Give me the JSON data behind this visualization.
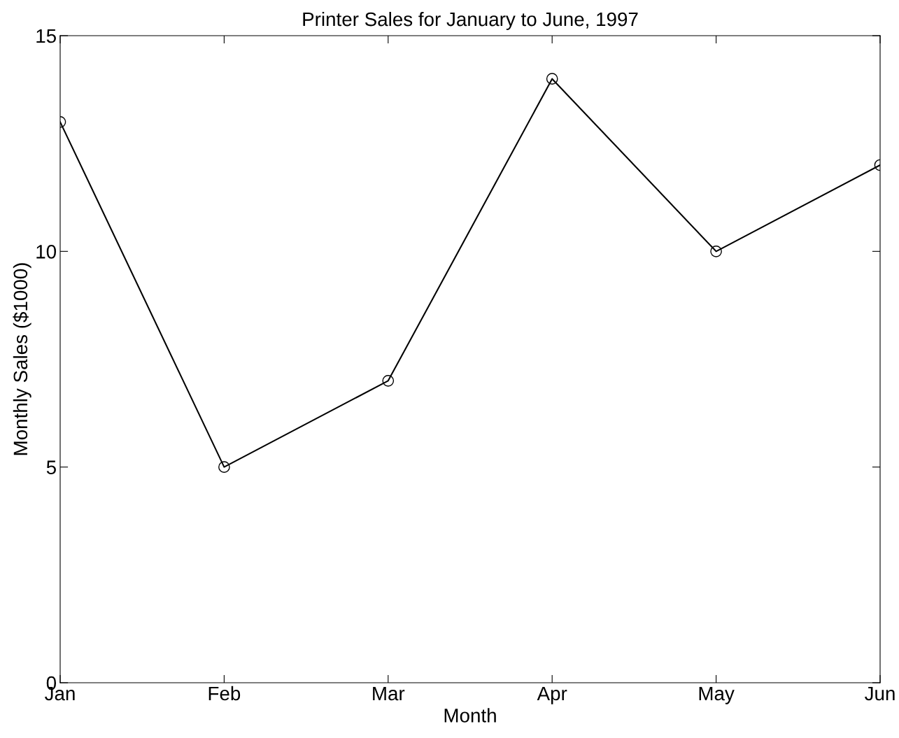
{
  "chart_data": {
    "type": "line",
    "title": "Printer Sales for January to June, 1997",
    "xlabel": "Month",
    "ylabel": "Monthly Sales ($1000)",
    "categories": [
      "Jan",
      "Feb",
      "Mar",
      "Apr",
      "May",
      "Jun"
    ],
    "series": [
      {
        "color": "#000000",
        "values": [
          13,
          5,
          7,
          14,
          10,
          12
        ]
      }
    ],
    "ylim": [
      0,
      15
    ],
    "yticks": [
      0,
      5,
      10,
      15
    ],
    "grid": false,
    "legend": false,
    "marker": "circle",
    "line_style": "solid"
  }
}
